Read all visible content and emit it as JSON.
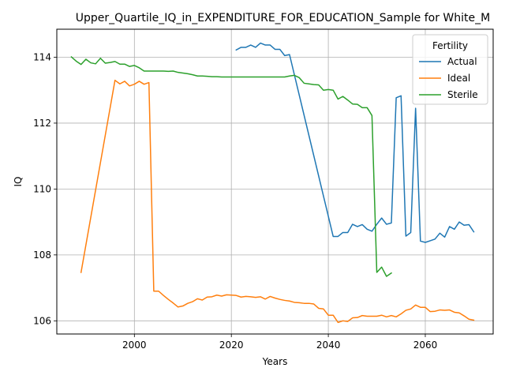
{
  "chart_data": {
    "type": "line",
    "title": "Upper_Quartile_IQ_in_EXPENDITURE_FOR_EDUCATION_Sample for White_M",
    "xlabel": "Years",
    "ylabel": "IQ",
    "xlim": [
      1984,
      2074
    ],
    "ylim": [
      105.6,
      114.85
    ],
    "xticks": [
      2000,
      2020,
      2040,
      2060
    ],
    "yticks": [
      106,
      108,
      110,
      112,
      114
    ],
    "grid": true,
    "legend": {
      "title": "Fertility",
      "placement": "top-right"
    },
    "series": [
      {
        "name": "Actual",
        "color": "#1f77b4",
        "x": [
          2021,
          2022,
          2023,
          2024,
          2025,
          2026,
          2027,
          2028,
          2029,
          2030,
          2031,
          2032,
          2041,
          2042,
          2043,
          2044,
          2045,
          2046,
          2047,
          2048,
          2049,
          2050,
          2051,
          2052,
          2053,
          2054,
          2055,
          2056,
          2057,
          2058,
          2059,
          2060,
          2061,
          2062,
          2063,
          2064,
          2065,
          2066,
          2067,
          2068,
          2069,
          2070
        ],
        "y": [
          114.22,
          114.3,
          114.3,
          114.37,
          114.3,
          114.43,
          114.37,
          114.37,
          114.24,
          114.24,
          114.05,
          114.08,
          108.56,
          108.56,
          108.68,
          108.68,
          108.93,
          108.86,
          108.92,
          108.78,
          108.72,
          108.93,
          109.12,
          108.93,
          108.97,
          112.77,
          112.83,
          108.57,
          108.68,
          112.45,
          108.42,
          108.38,
          108.43,
          108.48,
          108.66,
          108.54,
          108.86,
          108.78,
          109.0,
          108.9,
          108.92,
          108.7
        ]
      },
      {
        "name": "Ideal",
        "color": "#ff7f0e",
        "x": [
          1989,
          1996,
          1997,
          1998,
          1999,
          2000,
          2001,
          2002,
          2003,
          2004,
          2005,
          2006,
          2007,
          2008,
          2009,
          2010,
          2011,
          2012,
          2013,
          2014,
          2015,
          2016,
          2017,
          2018,
          2019,
          2020,
          2021,
          2022,
          2023,
          2024,
          2025,
          2026,
          2027,
          2028,
          2029,
          2030,
          2031,
          2032,
          2033,
          2034,
          2035,
          2036,
          2037,
          2038,
          2039,
          2040,
          2041,
          2042,
          2043,
          2044,
          2045,
          2046,
          2047,
          2048,
          2049,
          2050,
          2051,
          2052,
          2053,
          2054,
          2055,
          2056,
          2057,
          2058,
          2059,
          2060,
          2061,
          2062,
          2063,
          2064,
          2065,
          2066,
          2067,
          2068,
          2069,
          2070
        ],
        "y": [
          107.47,
          113.3,
          113.19,
          113.27,
          113.13,
          113.18,
          113.27,
          113.18,
          113.23,
          106.9,
          106.9,
          106.77,
          106.65,
          106.54,
          106.42,
          106.45,
          106.53,
          106.58,
          106.67,
          106.63,
          106.72,
          106.73,
          106.78,
          106.75,
          106.79,
          106.78,
          106.77,
          106.72,
          106.74,
          106.73,
          106.71,
          106.73,
          106.66,
          106.74,
          106.69,
          106.65,
          106.62,
          106.6,
          106.56,
          106.55,
          106.53,
          106.53,
          106.51,
          106.38,
          106.36,
          106.17,
          106.17,
          105.95,
          106.0,
          105.98,
          106.09,
          106.1,
          106.16,
          106.14,
          106.14,
          106.14,
          106.17,
          106.12,
          106.16,
          106.12,
          106.21,
          106.32,
          106.36,
          106.48,
          106.41,
          106.41,
          106.28,
          106.29,
          106.33,
          106.32,
          106.33,
          106.26,
          106.24,
          106.15,
          106.05,
          106.02
        ]
      },
      {
        "name": "Sterile",
        "color": "#2ca02c",
        "x": [
          1987,
          1988,
          1989,
          1990,
          1991,
          1992,
          1993,
          1994,
          1995,
          1996,
          1997,
          1998,
          1999,
          2000,
          2001,
          2002,
          2003,
          2004,
          2005,
          2006,
          2007,
          2008,
          2009,
          2010,
          2011,
          2012,
          2013,
          2014,
          2015,
          2016,
          2017,
          2018,
          2019,
          2020,
          2021,
          2022,
          2023,
          2024,
          2025,
          2026,
          2027,
          2028,
          2029,
          2030,
          2031,
          2032,
          2033,
          2034,
          2035,
          2036,
          2037,
          2038,
          2039,
          2040,
          2041,
          2042,
          2043,
          2044,
          2045,
          2046,
          2047,
          2048,
          2049,
          2050,
          2051,
          2052,
          2053
        ],
        "y": [
          114.01,
          113.88,
          113.78,
          113.94,
          113.83,
          113.8,
          113.97,
          113.82,
          113.84,
          113.87,
          113.79,
          113.79,
          113.72,
          113.75,
          113.68,
          113.58,
          113.58,
          113.58,
          113.58,
          113.58,
          113.57,
          113.58,
          113.54,
          113.52,
          113.5,
          113.47,
          113.43,
          113.43,
          113.42,
          113.41,
          113.41,
          113.4,
          113.4,
          113.4,
          113.4,
          113.4,
          113.4,
          113.4,
          113.4,
          113.4,
          113.4,
          113.4,
          113.4,
          113.4,
          113.4,
          113.43,
          113.45,
          113.38,
          113.21,
          113.19,
          113.17,
          113.16,
          113.0,
          113.02,
          113.0,
          112.73,
          112.81,
          112.7,
          112.58,
          112.57,
          112.47,
          112.47,
          112.23,
          107.47,
          107.63,
          107.35,
          107.45
        ]
      }
    ]
  }
}
